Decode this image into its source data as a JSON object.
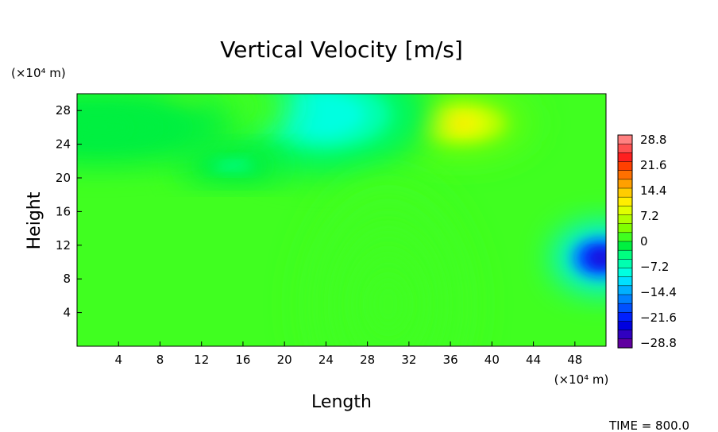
{
  "chart_data": {
    "type": "heatmap",
    "title": "Vertical Velocity [m/s]",
    "xlabel": "Length",
    "ylabel": "Height",
    "x_unit": "(×10⁴ m)",
    "y_unit": "(×10⁴ m)",
    "xlim": [
      0,
      51
    ],
    "ylim": [
      0,
      30
    ],
    "x_ticks": [
      "4",
      "8",
      "12",
      "16",
      "20",
      "24",
      "28",
      "32",
      "36",
      "40",
      "44",
      "48"
    ],
    "y_ticks": [
      "4",
      "8",
      "12",
      "16",
      "20",
      "24",
      "28"
    ],
    "colorbar": {
      "min": -28.8,
      "max": 28.8,
      "labels": [
        "28.8",
        "21.6",
        "14.4",
        "7.2",
        "0",
        "−7.2",
        "−14.4",
        "−21.6",
        "−28.8"
      ],
      "colors": [
        "#ff8080",
        "#ff5050",
        "#ff2020",
        "#ff4000",
        "#ff7000",
        "#ffa000",
        "#ffcc00",
        "#ffee00",
        "#e0ff00",
        "#b0ff00",
        "#80ff00",
        "#40ff20",
        "#00f040",
        "#00ff80",
        "#00ffb0",
        "#00ffe0",
        "#00e0ff",
        "#00b0ff",
        "#0080ff",
        "#0050ff",
        "#0020ff",
        "#0000e0",
        "#3000c0",
        "#6000a0"
      ]
    },
    "background_value": 0,
    "features": [
      {
        "x": 37.0,
        "y": 26.5,
        "value": 10.5
      },
      {
        "x": 23.5,
        "y": 27.5,
        "value": -9.0
      },
      {
        "x": 10.0,
        "y": 28.5,
        "value": 3.0
      },
      {
        "x": 15.0,
        "y": 21.5,
        "value": -3.0
      },
      {
        "x": 2.0,
        "y": 26.0,
        "value": -2.0
      },
      {
        "x": 50.5,
        "y": 10.5,
        "value": -26.0
      },
      {
        "x": 30.0,
        "y": 5.0,
        "value": 1.5
      }
    ],
    "time_label": "TIME = 800.0"
  }
}
